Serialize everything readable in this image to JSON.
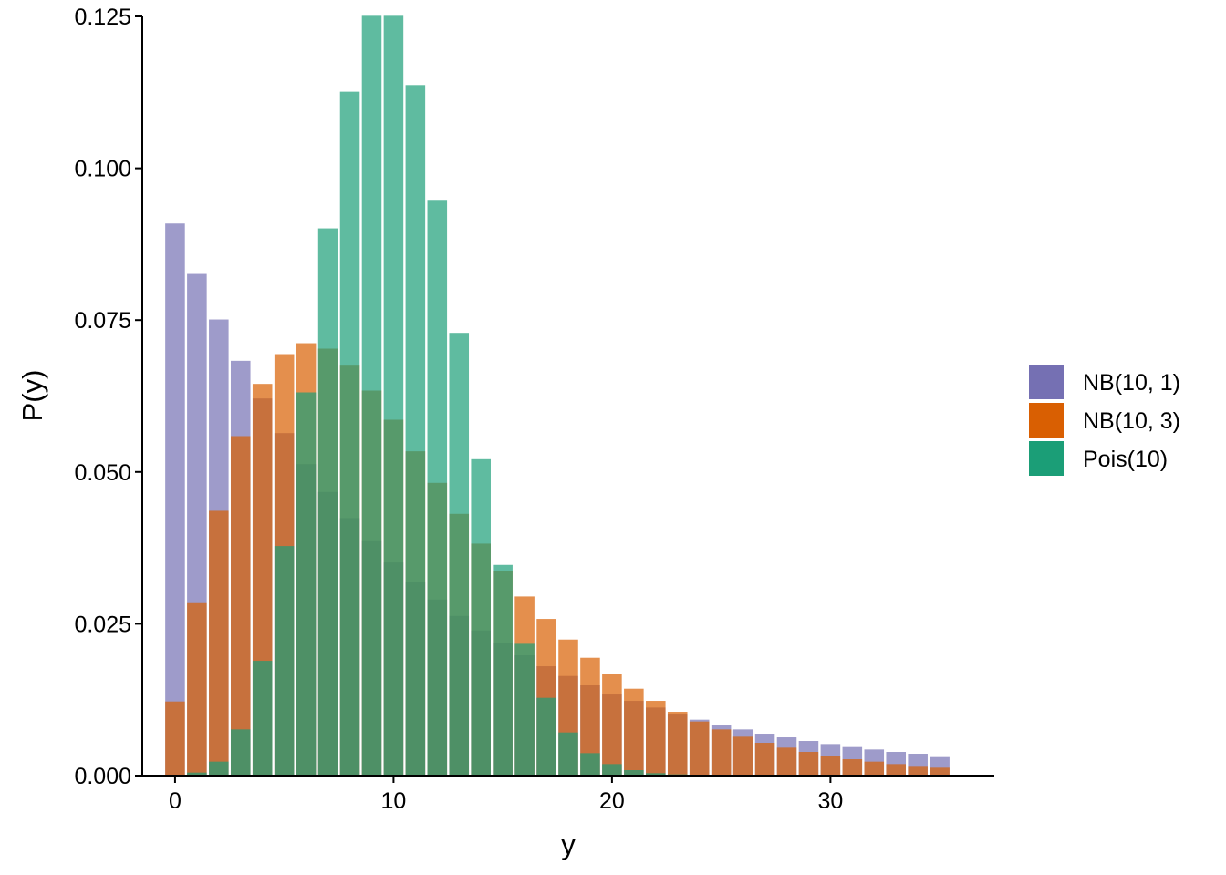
{
  "chart_data": {
    "type": "bar",
    "bar_mode": "overlay",
    "xlabel": "y",
    "ylabel": "P(y)",
    "xlim": [
      -1.5,
      37.5
    ],
    "ylim": [
      0,
      0.125
    ],
    "x_ticks": [
      0,
      10,
      20,
      30
    ],
    "x_tick_labels": [
      "0",
      "10",
      "20",
      "30"
    ],
    "y_ticks": [
      0,
      0.025,
      0.05,
      0.075,
      0.1,
      0.125
    ],
    "y_tick_labels": [
      "0.000",
      "0.025",
      "0.050",
      "0.075",
      "0.100",
      "0.125"
    ],
    "grid": false,
    "legend_position": "right",
    "x": [
      0,
      1,
      2,
      3,
      4,
      5,
      6,
      7,
      8,
      9,
      10,
      11,
      12,
      13,
      14,
      15,
      16,
      17,
      18,
      19,
      20,
      21,
      22,
      23,
      24,
      25,
      26,
      27,
      28,
      29,
      30,
      31,
      32,
      33,
      34,
      35
    ],
    "series": [
      {
        "name": "NB(10, 1)",
        "color": "#7570B3",
        "opacity": 0.7,
        "values": [
          0.0909,
          0.0826,
          0.0751,
          0.0683,
          0.0621,
          0.0564,
          0.0513,
          0.0467,
          0.0424,
          0.0386,
          0.0351,
          0.0319,
          0.029,
          0.0263,
          0.0239,
          0.0218,
          0.0198,
          0.018,
          0.0164,
          0.0149,
          0.0135,
          0.0123,
          0.0112,
          0.0102,
          0.0092,
          0.0084,
          0.0076,
          0.0069,
          0.0063,
          0.0057,
          0.0052,
          0.0047,
          0.0043,
          0.0039,
          0.0036,
          0.0032
        ]
      },
      {
        "name": "NB(10, 3)",
        "color": "#D95F02",
        "opacity": 0.7,
        "values": [
          0.0122,
          0.0284,
          0.0436,
          0.0559,
          0.0645,
          0.0694,
          0.0712,
          0.0703,
          0.0675,
          0.0634,
          0.0586,
          0.0534,
          0.0482,
          0.0431,
          0.0382,
          0.0337,
          0.0295,
          0.0258,
          0.0224,
          0.0194,
          0.0167,
          0.0143,
          0.0123,
          0.0105,
          0.0089,
          0.0076,
          0.0064,
          0.0054,
          0.0046,
          0.0039,
          0.0033,
          0.0027,
          0.0023,
          0.0019,
          0.0016,
          0.0013
        ]
      },
      {
        "name": "Pois(10)",
        "color": "#1B9E77",
        "opacity": 0.7,
        "values": [
          0.0,
          0.0005,
          0.0023,
          0.0076,
          0.0189,
          0.0378,
          0.0631,
          0.0901,
          0.1126,
          0.1251,
          0.1251,
          0.1137,
          0.0948,
          0.0729,
          0.0521,
          0.0347,
          0.0217,
          0.0128,
          0.0071,
          0.0037,
          0.0019,
          0.0009,
          0.0004,
          0.0002,
          0.0001,
          0.0,
          0.0,
          0.0,
          0.0,
          0.0,
          0.0,
          0.0,
          0.0,
          0.0,
          0.0,
          0.0
        ]
      }
    ]
  }
}
